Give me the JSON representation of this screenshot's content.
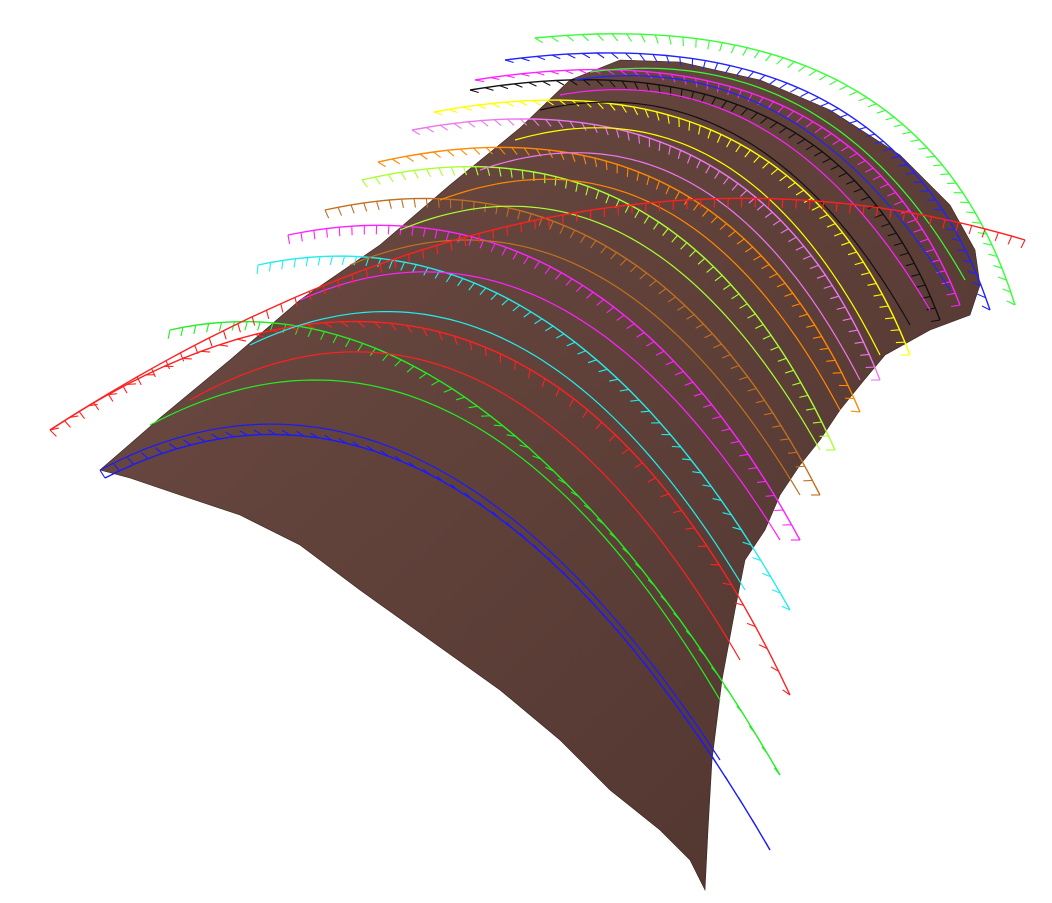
{
  "scene": {
    "background": "#ffffff",
    "surface_color": "#5e4039",
    "curve_colors": [
      "#1a1aff",
      "#22ee22",
      "#ff2020",
      "#22eeee",
      "#ff22ff",
      "#c07020",
      "#aaff33",
      "#ff8800",
      "#ee77ee",
      "#ffff00",
      "#111111",
      "#ff22ff",
      "#2222ff",
      "#33ff33"
    ],
    "cross_curve_color": "#ff2020",
    "element": "comb-plot-curvature-curves"
  }
}
